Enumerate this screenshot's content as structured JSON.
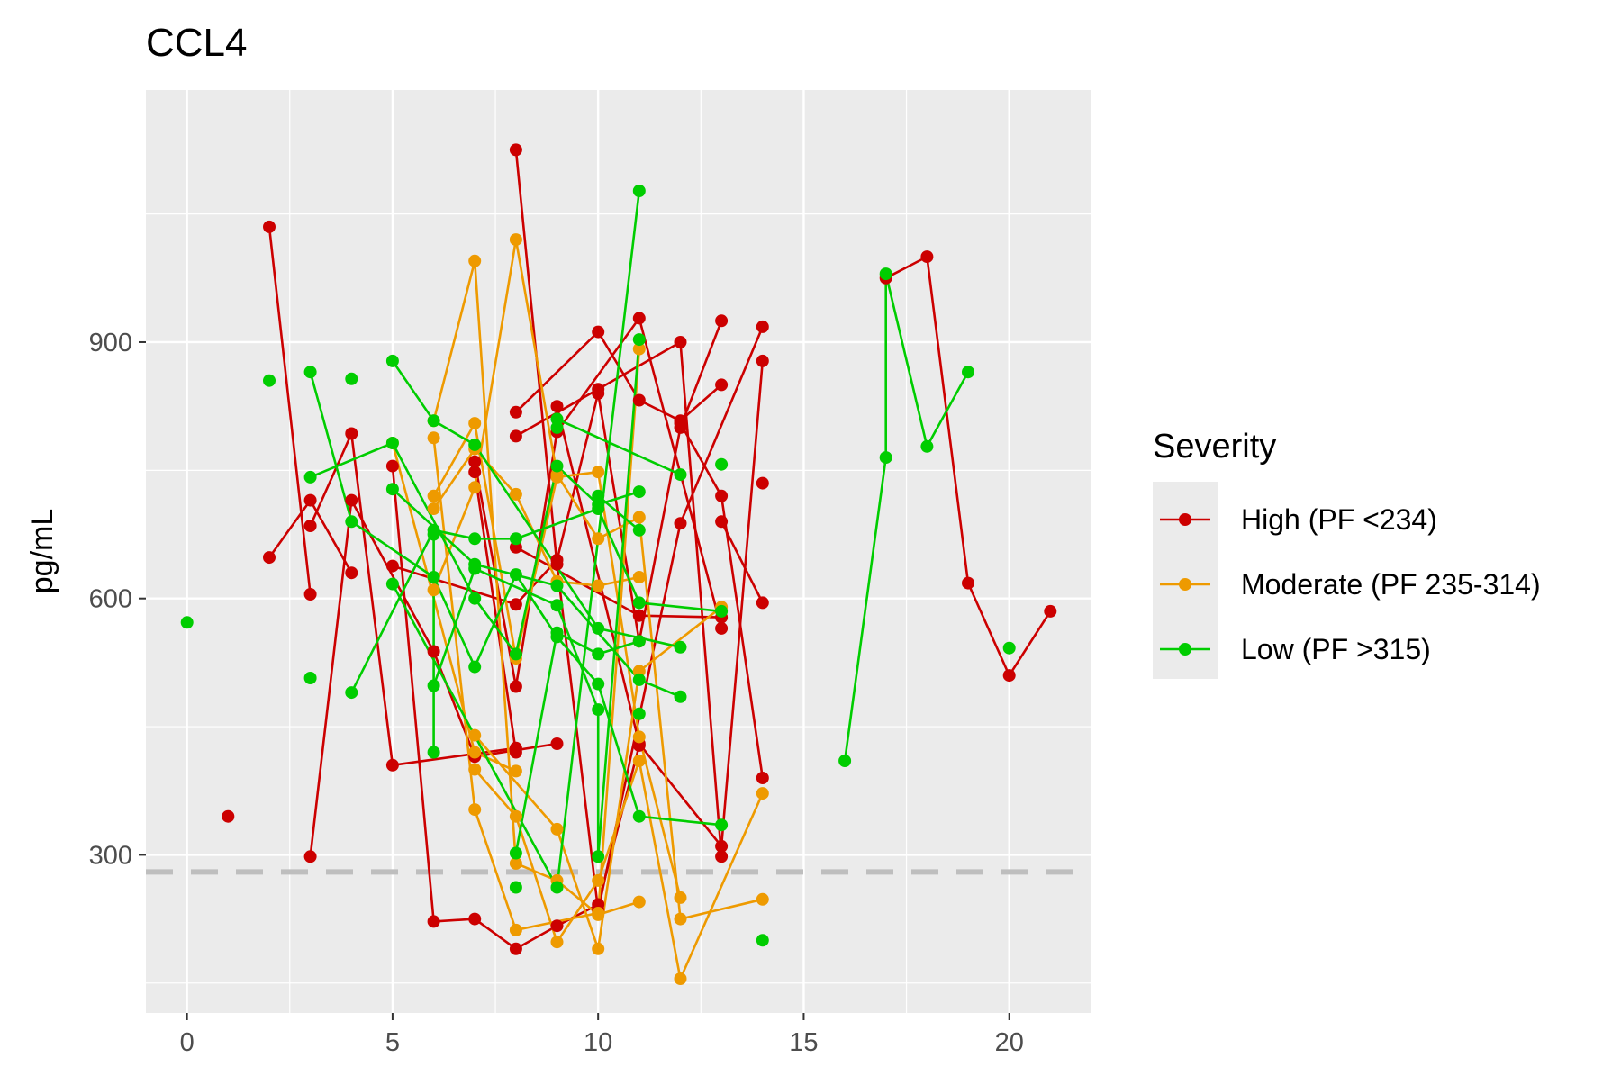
{
  "chart_data": {
    "type": "line",
    "title": "CCL4",
    "xlabel": "",
    "ylabel": "pg/mL",
    "xlim": [
      -1,
      22
    ],
    "ylim": [
      115,
      1195
    ],
    "x_ticks": [
      0,
      5,
      10,
      15,
      20
    ],
    "y_ticks": [
      300,
      600,
      900
    ],
    "grid": true,
    "reference_line": {
      "y": 280,
      "style": "dashed",
      "color": "#bebebe"
    },
    "legend": {
      "title": "Severity",
      "placement": "right",
      "entries": [
        {
          "label": "High (PF <234)",
          "color": "#cc0000"
        },
        {
          "label": "Moderate (PF 235-314)",
          "color": "#ee9a00"
        },
        {
          "label": "Low (PF >315)",
          "color": "#00cd00"
        }
      ]
    },
    "series": [
      {
        "group": "High",
        "color": "#cc0000",
        "points": [
          [
            2,
            1035
          ],
          [
            3,
            605
          ]
        ]
      },
      {
        "group": "High",
        "color": "#cc0000",
        "points": [
          [
            2,
            648
          ],
          [
            3,
            715
          ],
          [
            4,
            630
          ]
        ]
      },
      {
        "group": "High",
        "color": "#cc0000",
        "points": [
          [
            3,
            685
          ],
          [
            4,
            793
          ],
          [
            5,
            405
          ],
          [
            8,
            425
          ]
        ]
      },
      {
        "group": "High",
        "color": "#cc0000",
        "points": [
          [
            3,
            298
          ],
          [
            4,
            715
          ],
          [
            6,
            538
          ],
          [
            7,
            415
          ],
          [
            9,
            430
          ]
        ]
      },
      {
        "group": "High",
        "color": "#cc0000",
        "points": [
          [
            5,
            755
          ],
          [
            6,
            222
          ],
          [
            7,
            225
          ],
          [
            8,
            190
          ],
          [
            9,
            217
          ],
          [
            10,
            242
          ],
          [
            11,
            428
          ]
        ]
      },
      {
        "group": "High",
        "color": "#cc0000",
        "points": [
          [
            5,
            638
          ],
          [
            8,
            593
          ],
          [
            9,
            645
          ],
          [
            10,
            840
          ],
          [
            11,
            550
          ],
          [
            12,
            800
          ],
          [
            13,
            925
          ]
        ]
      },
      {
        "group": "High",
        "color": "#cc0000",
        "points": [
          [
            7,
            748
          ],
          [
            8,
            420
          ]
        ]
      },
      {
        "group": "High",
        "color": "#cc0000",
        "points": [
          [
            7,
            760
          ],
          [
            8,
            497
          ],
          [
            9,
            795
          ],
          [
            11,
            928
          ],
          [
            13,
            565
          ]
        ]
      },
      {
        "group": "High",
        "color": "#cc0000",
        "points": [
          [
            8,
            1125
          ],
          [
            9,
            640
          ],
          [
            10,
            235
          ],
          [
            12,
            688
          ],
          [
            14,
            918
          ]
        ]
      },
      {
        "group": "High",
        "color": "#cc0000",
        "points": [
          [
            8,
            818
          ],
          [
            10,
            912
          ],
          [
            11,
            832
          ],
          [
            12,
            808
          ],
          [
            13,
            850
          ]
        ]
      },
      {
        "group": "High",
        "color": "#cc0000",
        "points": [
          [
            8,
            790
          ],
          [
            10,
            845
          ],
          [
            12,
            900
          ],
          [
            13,
            298
          ]
        ]
      },
      {
        "group": "High",
        "color": "#cc0000",
        "points": [
          [
            8,
            660
          ],
          [
            11,
            580
          ],
          [
            13,
            578
          ]
        ]
      },
      {
        "group": "High",
        "color": "#cc0000",
        "points": [
          [
            9,
            825
          ],
          [
            11,
            430
          ],
          [
            13,
            310
          ],
          [
            14,
            878
          ]
        ]
      },
      {
        "group": "High",
        "color": "#cc0000",
        "points": [
          [
            12,
            805
          ],
          [
            13,
            720
          ],
          [
            14,
            390
          ]
        ]
      },
      {
        "group": "High",
        "color": "#cc0000",
        "points": [
          [
            13,
            690
          ],
          [
            14,
            595
          ]
        ]
      },
      {
        "group": "High",
        "color": "#cc0000",
        "points": [
          [
            1,
            345
          ]
        ]
      },
      {
        "group": "High",
        "color": "#cc0000",
        "points": [
          [
            14,
            735
          ]
        ]
      },
      {
        "group": "High",
        "color": "#cc0000",
        "points": [
          [
            17,
            975
          ],
          [
            18,
            1000
          ],
          [
            19,
            618
          ],
          [
            20,
            510
          ],
          [
            21,
            585
          ]
        ]
      },
      {
        "group": "Moderate",
        "color": "#ee9a00",
        "points": [
          [
            5,
            782
          ],
          [
            7,
            420
          ],
          [
            8,
            398
          ]
        ]
      },
      {
        "group": "Moderate",
        "color": "#ee9a00",
        "points": [
          [
            6,
            808
          ],
          [
            7,
            995
          ],
          [
            8,
            290
          ],
          [
            9,
            270
          ],
          [
            10,
            230
          ],
          [
            11,
            245
          ]
        ]
      },
      {
        "group": "Moderate",
        "color": "#ee9a00",
        "points": [
          [
            6,
            788
          ],
          [
            7,
            353
          ],
          [
            8,
            212
          ],
          [
            10,
            232
          ],
          [
            11,
            892
          ]
        ]
      },
      {
        "group": "Moderate",
        "color": "#ee9a00",
        "points": [
          [
            6,
            720
          ],
          [
            7,
            805
          ],
          [
            8,
            530
          ],
          [
            9,
            742
          ],
          [
            10,
            748
          ],
          [
            11,
            438
          ],
          [
            12,
            250
          ]
        ]
      },
      {
        "group": "Moderate",
        "color": "#ee9a00",
        "points": [
          [
            6,
            705
          ],
          [
            7,
            775
          ],
          [
            8,
            722
          ],
          [
            9,
            620
          ],
          [
            10,
            615
          ],
          [
            11,
            625
          ]
        ]
      },
      {
        "group": "Moderate",
        "color": "#ee9a00",
        "points": [
          [
            6,
            610
          ],
          [
            7,
            730
          ],
          [
            8,
            1020
          ],
          [
            9,
            745
          ],
          [
            10,
            670
          ],
          [
            11,
            695
          ],
          [
            12,
            225
          ],
          [
            14,
            248
          ]
        ]
      },
      {
        "group": "Moderate",
        "color": "#ee9a00",
        "points": [
          [
            7,
            400
          ],
          [
            8,
            345
          ],
          [
            9,
            198
          ],
          [
            10,
            270
          ],
          [
            11,
            410
          ],
          [
            12,
            155
          ],
          [
            14,
            372
          ]
        ]
      },
      {
        "group": "Moderate",
        "color": "#ee9a00",
        "points": [
          [
            7,
            440
          ],
          [
            9,
            330
          ],
          [
            10,
            190
          ],
          [
            11,
            515
          ],
          [
            13,
            590
          ]
        ]
      },
      {
        "group": "Low",
        "color": "#00cd00",
        "points": [
          [
            3,
            742
          ],
          [
            5,
            782
          ],
          [
            7,
            600
          ],
          [
            8,
            535
          ],
          [
            9,
            755
          ],
          [
            10,
            710
          ],
          [
            11,
            725
          ]
        ]
      },
      {
        "group": "Low",
        "color": "#00cd00",
        "points": [
          [
            3,
            865
          ],
          [
            4,
            690
          ],
          [
            6,
            625
          ],
          [
            7,
            520
          ],
          [
            8,
            628
          ],
          [
            9,
            555
          ],
          [
            10,
            500
          ],
          [
            11,
            345
          ],
          [
            13,
            335
          ]
        ]
      },
      {
        "group": "Low",
        "color": "#00cd00",
        "points": [
          [
            4,
            490
          ],
          [
            6,
            680
          ],
          [
            7,
            670
          ],
          [
            8,
            670
          ],
          [
            10,
            705
          ],
          [
            11,
            595
          ],
          [
            13,
            585
          ]
        ]
      },
      {
        "group": "Low",
        "color": "#00cd00",
        "points": [
          [
            5,
            878
          ],
          [
            6,
            808
          ],
          [
            7,
            780
          ],
          [
            10,
            565
          ],
          [
            12,
            543
          ]
        ]
      },
      {
        "group": "Low",
        "color": "#00cd00",
        "points": [
          [
            5,
            728
          ],
          [
            7,
            640
          ],
          [
            9,
            615
          ],
          [
            11,
            505
          ],
          [
            12,
            485
          ]
        ]
      },
      {
        "group": "Low",
        "color": "#00cd00",
        "points": [
          [
            5,
            617
          ],
          [
            9,
            262
          ],
          [
            11,
            1077
          ]
        ]
      },
      {
        "group": "Low",
        "color": "#00cd00",
        "points": [
          [
            6,
            675
          ],
          [
            6,
            420
          ]
        ]
      },
      {
        "group": "Low",
        "color": "#00cd00",
        "points": [
          [
            6,
            498
          ],
          [
            7,
            635
          ],
          [
            9,
            592
          ],
          [
            10,
            470
          ],
          [
            10,
            298
          ],
          [
            11,
            903
          ]
        ]
      },
      {
        "group": "Low",
        "color": "#00cd00",
        "points": [
          [
            8,
            302
          ],
          [
            9,
            560
          ],
          [
            10,
            535
          ],
          [
            11,
            550
          ]
        ]
      },
      {
        "group": "Low",
        "color": "#00cd00",
        "points": [
          [
            9,
            810
          ],
          [
            12,
            745
          ]
        ]
      },
      {
        "group": "Low",
        "color": "#00cd00",
        "points": [
          [
            10,
            720
          ],
          [
            11,
            680
          ]
        ]
      },
      {
        "group": "Low",
        "color": "#00cd00",
        "points": [
          [
            11,
            465
          ]
        ]
      },
      {
        "group": "Low",
        "color": "#00cd00",
        "points": [
          [
            0,
            572
          ]
        ]
      },
      {
        "group": "Low",
        "color": "#00cd00",
        "points": [
          [
            2,
            855
          ]
        ]
      },
      {
        "group": "Low",
        "color": "#00cd00",
        "points": [
          [
            3,
            507
          ]
        ]
      },
      {
        "group": "Low",
        "color": "#00cd00",
        "points": [
          [
            4,
            857
          ]
        ]
      },
      {
        "group": "Low",
        "color": "#00cd00",
        "points": [
          [
            8,
            262
          ]
        ]
      },
      {
        "group": "Low",
        "color": "#00cd00",
        "points": [
          [
            9,
            800
          ]
        ]
      },
      {
        "group": "Low",
        "color": "#00cd00",
        "points": [
          [
            13,
            757
          ]
        ]
      },
      {
        "group": "Low",
        "color": "#00cd00",
        "points": [
          [
            14,
            200
          ]
        ]
      },
      {
        "group": "Low",
        "color": "#00cd00",
        "points": [
          [
            16,
            410
          ],
          [
            17,
            765
          ],
          [
            17,
            980
          ],
          [
            18,
            778
          ],
          [
            19,
            865
          ]
        ]
      },
      {
        "group": "Low",
        "color": "#00cd00",
        "points": [
          [
            20,
            542
          ]
        ]
      }
    ]
  }
}
